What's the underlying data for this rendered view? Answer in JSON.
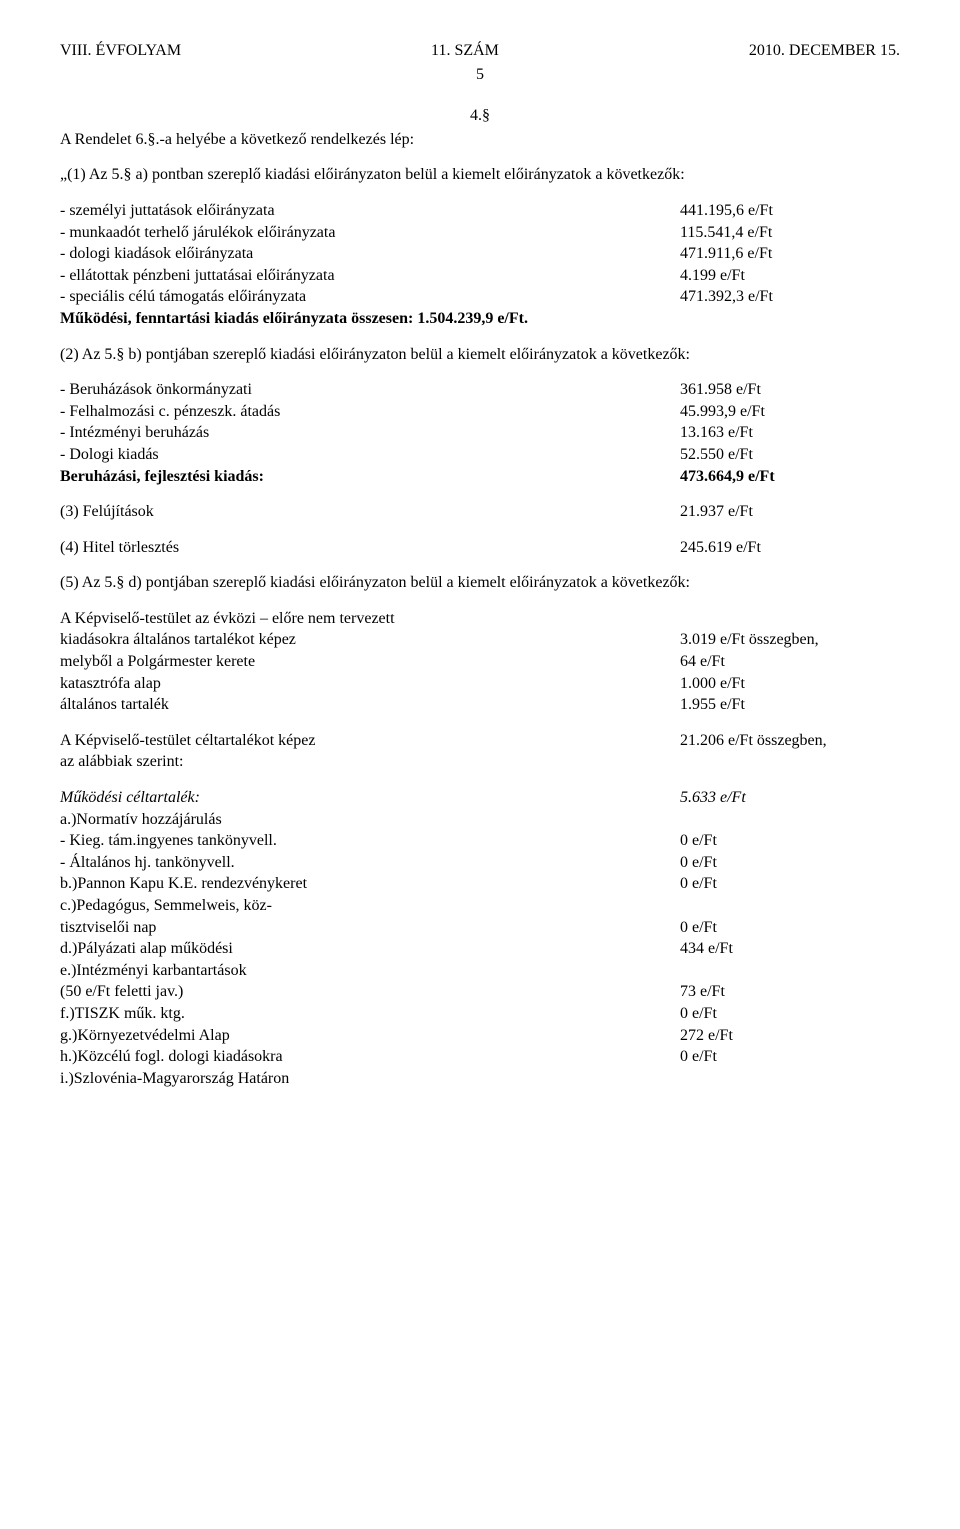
{
  "header": {
    "left": "VIII. ÉVFOLYAM",
    "center": "11. SZÁM",
    "right": "2010. DECEMBER 15.",
    "page": "5"
  },
  "s4": {
    "num": "4.§",
    "intro": "A Rendelet 6.§.-a helyébe a következő rendelkezés lép:",
    "p1_lead": "„(1) Az 5.§ a) pontban szereplő kiadási előirányzaton belül a kiemelt előirányzatok a következők:",
    "p1_items": [
      {
        "label": "- személyi juttatások előirányzata",
        "value": "441.195,6 e/Ft"
      },
      {
        "label": "- munkaadót terhelő járulékok előirányzata",
        "value": "115.541,4 e/Ft"
      },
      {
        "label": "- dologi kiadások előirányzata",
        "value": "471.911,6 e/Ft"
      },
      {
        "label": "- ellátottak pénzbeni juttatásai előirányzata",
        "value": "4.199 e/Ft"
      },
      {
        "label": "- speciális célú támogatás előirányzata",
        "value": "471.392,3 e/Ft"
      }
    ],
    "p1_total": {
      "label": "Működési, fenntartási kiadás előirányzata összesen: 1.504.239,9 e/Ft."
    },
    "p2_lead": "(2) Az 5.§ b) pontjában szereplő kiadási előirányzaton belül a kiemelt előirányzatok a következők:",
    "p2_items": [
      {
        "label": "- Beruházások önkormányzati",
        "value": "361.958 e/Ft"
      },
      {
        "label": "- Felhalmozási c. pénzeszk. átadás",
        "value": "45.993,9 e/Ft"
      },
      {
        "label": "- Intézményi beruházás",
        "value": "13.163 e/Ft"
      },
      {
        "label": "- Dologi kiadás",
        "value": "52.550 e/Ft"
      }
    ],
    "p2_total": {
      "label": "Beruházási, fejlesztési kiadás:",
      "value": "473.664,9 e/Ft"
    },
    "p3": {
      "label": "(3) Felújítások",
      "value": "21.937 e/Ft"
    },
    "p4": {
      "label": "(4) Hitel törlesztés",
      "value": "245.619 e/Ft"
    },
    "p5_lead": "(5) Az 5.§ d) pontjában szereplő kiadási előirányzaton belül a kiemelt előirányzatok a következők:",
    "p5_a": [
      {
        "label": "A Képviselő-testület az évközi – előre nem tervezett",
        "value": ""
      },
      {
        "label": "kiadásokra általános tartalékot képez",
        "value": "3.019 e/Ft összegben,"
      },
      {
        "label": "melyből a Polgármester kerete",
        "value": "64 e/Ft"
      },
      {
        "label": "katasztrófa alap",
        "value": "1.000 e/Ft"
      },
      {
        "label": "általános tartalék",
        "value": "1.955 e/Ft"
      }
    ],
    "p5_b": [
      {
        "label": "A Képviselő-testület céltartalékot képez",
        "value": "21.206 e/Ft  összegben,"
      },
      {
        "label": "az alábbiak szerint:",
        "value": ""
      }
    ],
    "p5_c_head": {
      "label": "Működési céltartalék:",
      "value": "5.633 e/Ft"
    },
    "p5_c": [
      {
        "label": "a.)Normatív hozzájárulás",
        "value": ""
      },
      {
        "label": "- Kieg. tám.ingyenes tankönyvell.",
        "value": "0 e/Ft"
      },
      {
        "label": "- Általános hj. tankönyvell.",
        "value": "0 e/Ft"
      },
      {
        "label": "b.)Pannon Kapu K.E. rendezvénykeret",
        "value": "0 e/Ft"
      },
      {
        "label": "c.)Pedagógus, Semmelweis, köz-",
        "value": ""
      },
      {
        "label": "tisztviselői nap",
        "value": "0 e/Ft"
      },
      {
        "label": "d.)Pályázati alap működési",
        "value": "434 e/Ft"
      },
      {
        "label": "e.)Intézményi karbantartások",
        "value": ""
      },
      {
        "label": "(50 e/Ft feletti jav.)",
        "value": "73 e/Ft"
      },
      {
        "label": "f.)TISZK műk. ktg.",
        "value": "0 e/Ft"
      },
      {
        "label": "g.)Környezetvédelmi Alap",
        "value": "272 e/Ft"
      },
      {
        "label": "h.)Közcélú fogl. dologi kiadásokra",
        "value": "0 e/Ft"
      },
      {
        "label": "i.)Szlovénia-Magyarország Határon",
        "value": ""
      }
    ]
  }
}
